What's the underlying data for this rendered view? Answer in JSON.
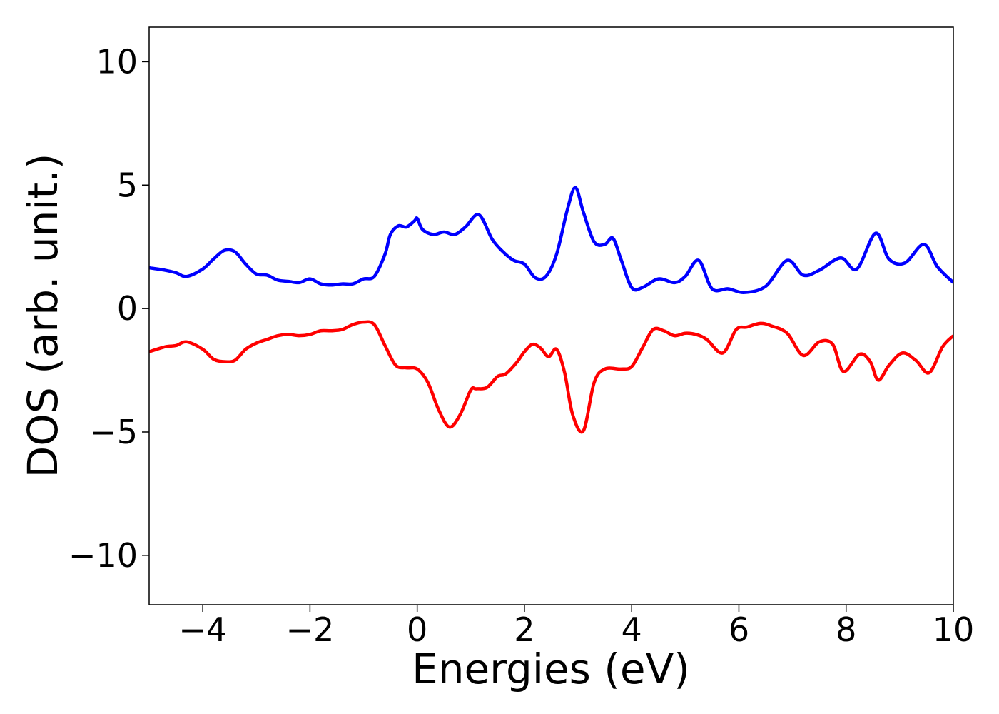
{
  "chart_data": {
    "type": "line",
    "title": "",
    "xlabel": "Energies (eV)",
    "ylabel": "DOS (arb. unit.)",
    "xlim": [
      -5,
      10
    ],
    "ylim": [
      -12,
      11.4
    ],
    "xticks": [
      -4,
      -2,
      0,
      2,
      4,
      6,
      8,
      10
    ],
    "xtick_labels": [
      "−4",
      "−2",
      "0",
      "2",
      "4",
      "6",
      "8",
      "10"
    ],
    "yticks": [
      10,
      5,
      0,
      -5,
      -10
    ],
    "ytick_labels": [
      "10",
      "5",
      "0",
      "−5",
      "−10"
    ],
    "grid": false,
    "legend": "none",
    "series": [
      {
        "color": "#0000ff",
        "x": [
          -5.0,
          -4.7,
          -4.5,
          -4.3,
          -4.0,
          -3.8,
          -3.6,
          -3.4,
          -3.2,
          -3.0,
          -2.8,
          -2.6,
          -2.4,
          -2.2,
          -2.0,
          -1.8,
          -1.6,
          -1.4,
          -1.2,
          -1.0,
          -0.8,
          -0.6,
          -0.5,
          -0.35,
          -0.2,
          -0.05,
          0.0,
          0.1,
          0.3,
          0.5,
          0.7,
          0.9,
          1.15,
          1.4,
          1.6,
          1.8,
          2.0,
          2.2,
          2.4,
          2.6,
          2.8,
          2.95,
          3.1,
          3.3,
          3.5,
          3.65,
          3.8,
          4.0,
          4.2,
          4.5,
          4.8,
          5.0,
          5.25,
          5.5,
          5.8,
          6.1,
          6.5,
          6.9,
          7.2,
          7.5,
          7.9,
          8.2,
          8.55,
          8.8,
          9.1,
          9.45,
          9.7,
          10.0
        ],
        "values": [
          1.65,
          1.55,
          1.45,
          1.3,
          1.6,
          2.0,
          2.35,
          2.3,
          1.8,
          1.4,
          1.35,
          1.15,
          1.1,
          1.05,
          1.2,
          1.0,
          0.95,
          1.0,
          1.0,
          1.2,
          1.3,
          2.2,
          3.0,
          3.35,
          3.3,
          3.55,
          3.65,
          3.2,
          3.0,
          3.1,
          3.0,
          3.3,
          3.8,
          2.8,
          2.3,
          1.95,
          1.8,
          1.25,
          1.3,
          2.2,
          4.0,
          4.9,
          3.9,
          2.7,
          2.6,
          2.85,
          2.0,
          0.85,
          0.85,
          1.2,
          1.05,
          1.3,
          1.95,
          0.8,
          0.8,
          0.65,
          0.9,
          1.95,
          1.35,
          1.55,
          2.05,
          1.6,
          3.05,
          2.0,
          1.85,
          2.6,
          1.7,
          1.05
        ]
      },
      {
        "color": "#ff0000",
        "x": [
          -5.0,
          -4.7,
          -4.5,
          -4.3,
          -4.0,
          -3.8,
          -3.6,
          -3.4,
          -3.2,
          -3.0,
          -2.8,
          -2.6,
          -2.4,
          -2.2,
          -2.0,
          -1.8,
          -1.6,
          -1.4,
          -1.2,
          -1.0,
          -0.8,
          -0.6,
          -0.4,
          -0.2,
          0.0,
          0.2,
          0.4,
          0.6,
          0.8,
          1.0,
          1.1,
          1.3,
          1.5,
          1.65,
          1.85,
          2.0,
          2.15,
          2.3,
          2.45,
          2.6,
          2.75,
          2.9,
          3.1,
          3.3,
          3.5,
          3.8,
          4.0,
          4.2,
          4.4,
          4.6,
          4.8,
          5.0,
          5.2,
          5.4,
          5.7,
          5.95,
          6.15,
          6.4,
          6.6,
          6.9,
          7.2,
          7.5,
          7.75,
          7.95,
          8.25,
          8.45,
          8.6,
          8.8,
          9.05,
          9.3,
          9.55,
          9.8,
          10.0
        ],
        "values": [
          -1.75,
          -1.55,
          -1.5,
          -1.35,
          -1.65,
          -2.05,
          -2.15,
          -2.1,
          -1.65,
          -1.4,
          -1.25,
          -1.1,
          -1.05,
          -1.1,
          -1.05,
          -0.9,
          -0.9,
          -0.85,
          -0.65,
          -0.55,
          -0.65,
          -1.5,
          -2.3,
          -2.4,
          -2.45,
          -3.0,
          -4.1,
          -4.8,
          -4.3,
          -3.3,
          -3.25,
          -3.2,
          -2.75,
          -2.65,
          -2.2,
          -1.75,
          -1.45,
          -1.6,
          -1.95,
          -1.65,
          -2.6,
          -4.3,
          -4.95,
          -3.0,
          -2.45,
          -2.45,
          -2.35,
          -1.6,
          -0.85,
          -0.9,
          -1.1,
          -1.0,
          -1.05,
          -1.25,
          -1.8,
          -0.85,
          -0.75,
          -0.6,
          -0.7,
          -1.0,
          -1.9,
          -1.35,
          -1.45,
          -2.55,
          -1.85,
          -2.15,
          -2.9,
          -2.3,
          -1.8,
          -2.1,
          -2.6,
          -1.55,
          -1.1
        ]
      }
    ]
  }
}
